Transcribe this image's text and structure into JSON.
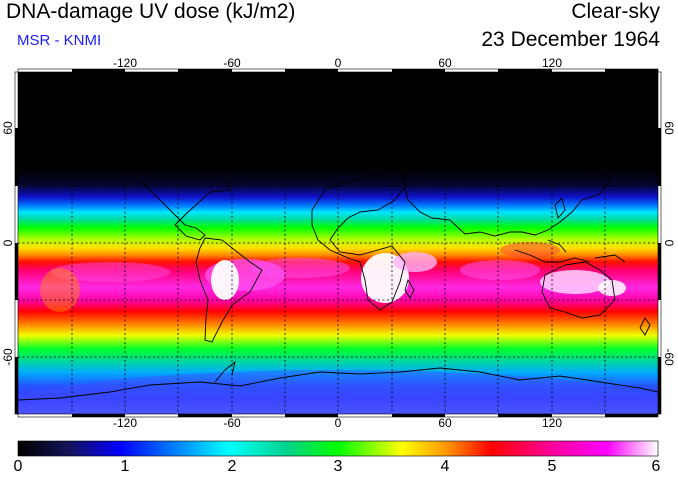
{
  "header": {
    "title": "DNA-damage UV dose (kJ/m2)",
    "subtitle": "MSR - KNMI",
    "mode": "Clear-sky",
    "date": "23 December 1964"
  },
  "axes": {
    "lon_labels": [
      "-120",
      "-60",
      "0",
      "60",
      "120"
    ],
    "lat_labels_left": [
      "60",
      "0",
      "-60"
    ],
    "lat_labels_right": [
      "60",
      "0",
      "-60"
    ]
  },
  "colorbar": {
    "labels": [
      "0",
      "1",
      "2",
      "3",
      "4",
      "5",
      "6"
    ],
    "min": 0,
    "max": 6,
    "unit": "kJ/m2",
    "stops": [
      "#000000",
      "#14145a",
      "#0000ff",
      "#0096ff",
      "#00ffff",
      "#00d28c",
      "#00ff00",
      "#ffff00",
      "#ff9600",
      "#ff0000",
      "#ff0096",
      "#ff00ff",
      "#ffffff"
    ]
  },
  "colors": {
    "grid": "#000000",
    "coast": "#000000",
    "subtitle": "#1d1dff"
  }
}
